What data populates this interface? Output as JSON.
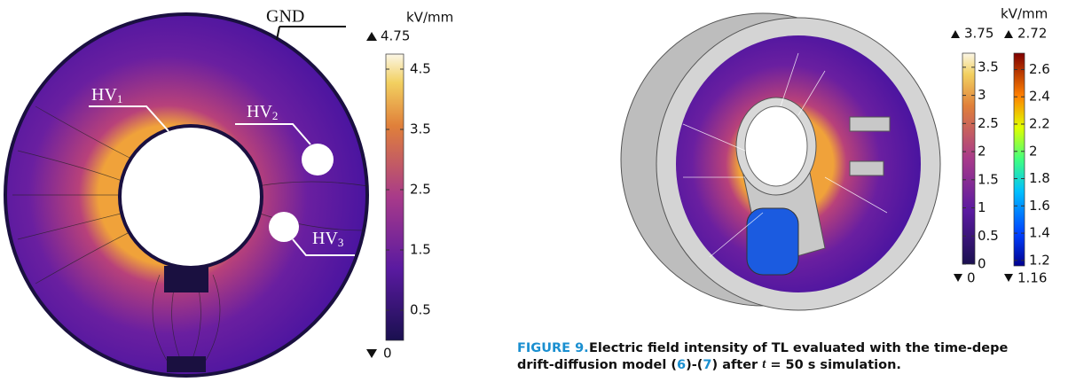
{
  "left": {
    "annotations": {
      "gnd": "GND",
      "hv1": {
        "text": "HV",
        "sub": "1"
      },
      "hv2": {
        "text": "HV",
        "sub": "2"
      },
      "hv3": {
        "text": "HV",
        "sub": "3"
      }
    },
    "colorbar": {
      "unit": "kV/mm",
      "min": 0,
      "max": 4.75,
      "ticks": [
        0.5,
        1.5,
        2.5,
        3.5,
        4.5
      ]
    }
  },
  "right": {
    "unit": "kV/mm",
    "colorbars": [
      {
        "min": 0,
        "max": 3.75,
        "ticks": [
          0,
          0.5,
          1,
          1.5,
          2,
          2.5,
          3,
          3.5
        ]
      },
      {
        "min": 1.16,
        "max": 2.72,
        "ticks": [
          1.2,
          1.4,
          1.6,
          1.8,
          2,
          2.2,
          2.4,
          2.6
        ]
      }
    ]
  },
  "caption": {
    "label": "FIGURE 9.",
    "line1": "Electric field intensity of TL evaluated with the time-depe",
    "line2": [
      "drift-diffusion model (",
      "6",
      ")-(",
      "7",
      ") after ",
      "t",
      " = 50 s simulation."
    ]
  }
}
